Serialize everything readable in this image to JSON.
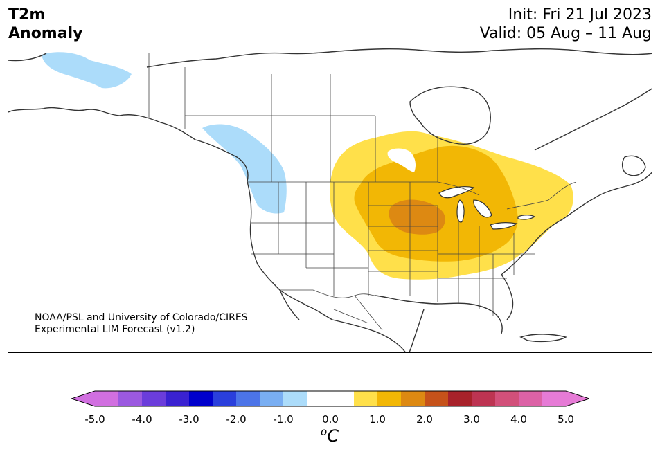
{
  "header": {
    "variable_line1": "T2m",
    "variable_line2": "Anomaly",
    "init_text": "Init: Fri 21 Jul 2023",
    "valid_text": "Valid: 05 Aug – 11 Aug"
  },
  "credit": {
    "line1": "NOAA/PSL and University of Colorado/CIRES",
    "line2": "Experimental LIM Forecast (v1.2)"
  },
  "colorbar": {
    "ticks": [
      "-5.0",
      "-4.0",
      "-3.0",
      "-2.0",
      "-1.0",
      "0.0",
      "1.0",
      "2.0",
      "3.0",
      "4.0",
      "5.0"
    ],
    "unit_base": "C",
    "unit_sup": "o",
    "under_color": "#d16fe0",
    "over_color": "#e67bd6",
    "colors": [
      "#d16fe0",
      "#9b59e0",
      "#6b3ddb",
      "#3a22d1",
      "#0000cc",
      "#2a3fdc",
      "#4c74e8",
      "#79aef2",
      "#acdcfa",
      "#ffffff",
      "#ffffff",
      "#ffe04a",
      "#f2b705",
      "#dd8912",
      "#c6521a",
      "#a8222a",
      "#bd3452",
      "#d2507a",
      "#dc62a6",
      "#e67bd6"
    ]
  },
  "anomaly_colors": {
    "cool_1": "#acdcfa",
    "warm_1": "#ffe04a",
    "warm_2": "#f2b705",
    "warm_3": "#dd8912"
  }
}
